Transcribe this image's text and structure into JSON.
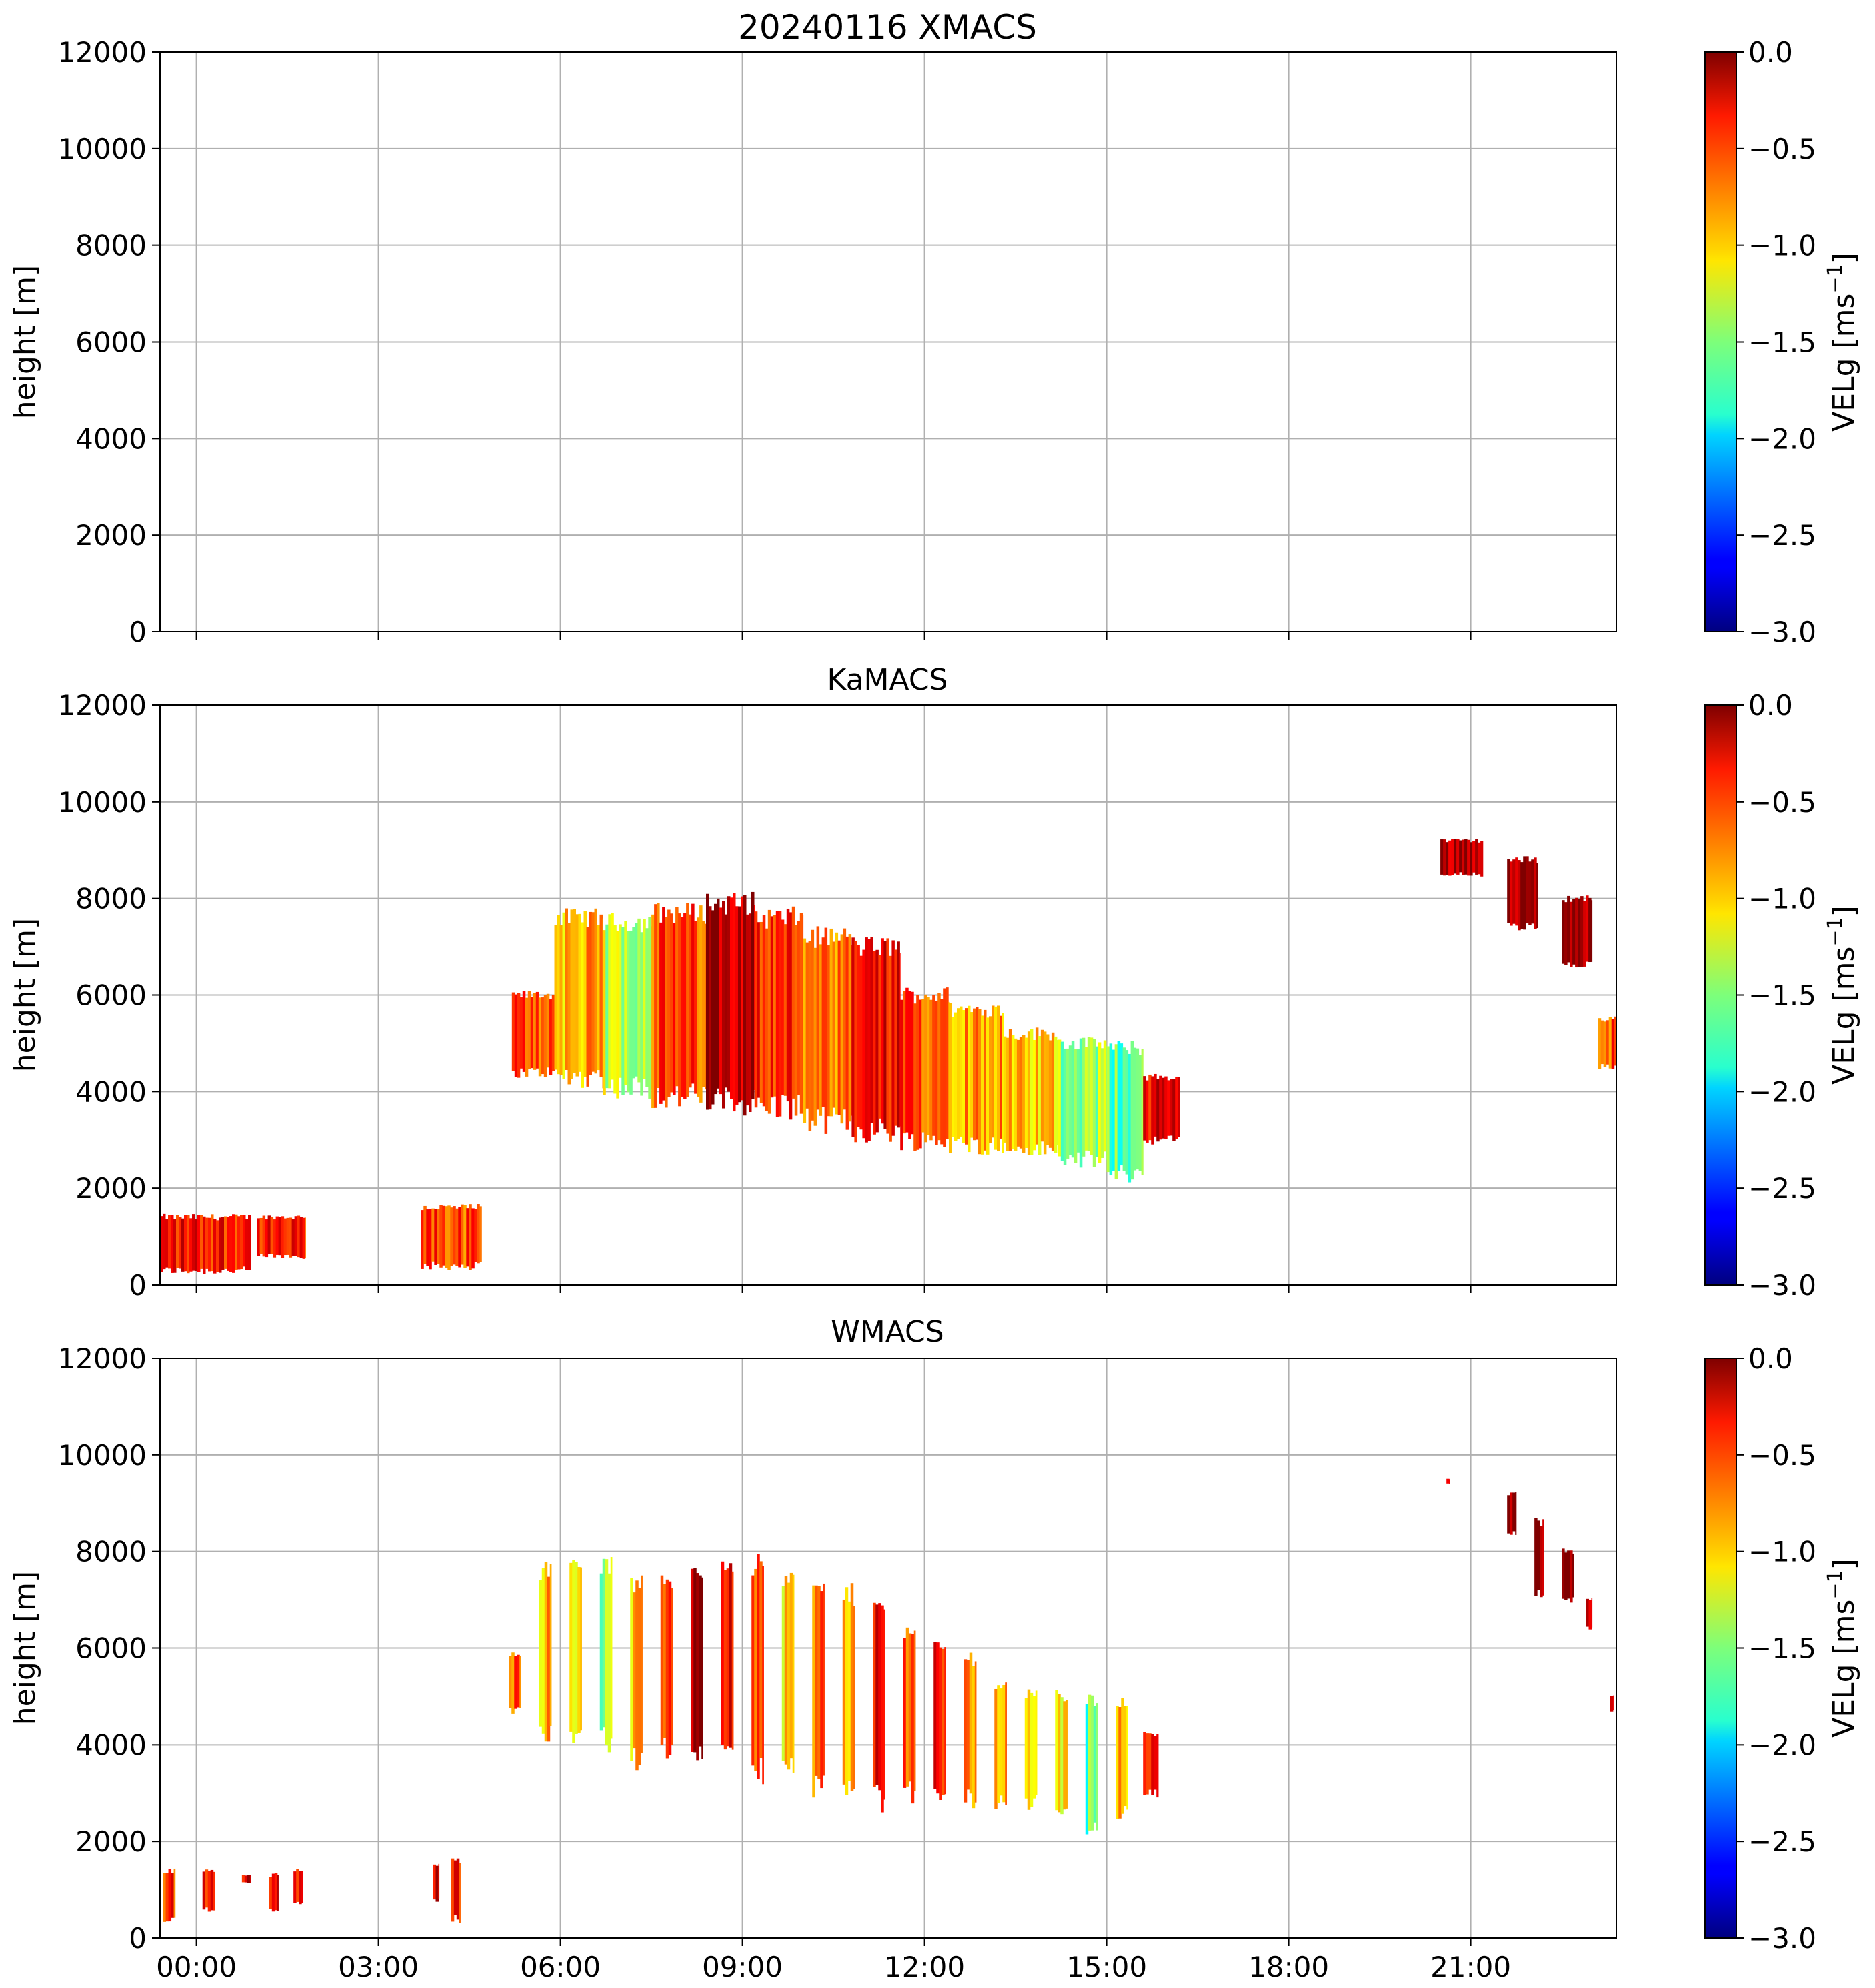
{
  "chart_data": [
    {
      "type": "heatmap",
      "title": "20240116 XMACS",
      "xlabel": "",
      "ylabel": "height [m]",
      "xlim": [
        -0.6,
        23.4
      ],
      "ylim": [
        0,
        12000
      ],
      "x_ticks": [
        0,
        3,
        6,
        9,
        12,
        15,
        18,
        21
      ],
      "y_ticks": [
        0,
        2000,
        4000,
        6000,
        8000,
        10000,
        12000
      ],
      "y_tick_labels": [
        "0",
        "2000",
        "4000",
        "6000",
        "8000",
        "10000",
        "12000"
      ],
      "grid": true,
      "colorbar": {
        "label": "VELg [ms",
        "label_sup": "−1",
        "label_end": "]",
        "range": [
          -3.0,
          0.0
        ],
        "tick_values": [
          0.0,
          -0.5,
          -1.0,
          -1.5,
          -2.0,
          -2.5,
          -3.0
        ],
        "tick_labels": [
          "0.0",
          "−0.5",
          "−1.0",
          "−1.5",
          "−2.0",
          "−2.5",
          "−3.0"
        ],
        "colormap": "jet"
      },
      "regions": []
    },
    {
      "type": "heatmap",
      "title": "KaMACS",
      "xlabel": "",
      "ylabel": "height [m]",
      "xlim": [
        -0.6,
        23.4
      ],
      "ylim": [
        0,
        12000
      ],
      "x_ticks": [
        0,
        3,
        6,
        9,
        12,
        15,
        18,
        21
      ],
      "y_ticks": [
        0,
        2000,
        4000,
        6000,
        8000,
        10000,
        12000
      ],
      "y_tick_labels": [
        "0",
        "2000",
        "4000",
        "6000",
        "8000",
        "10000",
        "12000"
      ],
      "grid": true,
      "colorbar": {
        "label": "VELg [ms",
        "label_sup": "−1",
        "label_end": "]",
        "range": [
          -3.0,
          0.0
        ],
        "tick_values": [
          0.0,
          -0.5,
          -1.0,
          -1.5,
          -2.0,
          -2.5,
          -3.0
        ],
        "tick_labels": [
          "0.0",
          "−0.5",
          "−1.0",
          "−1.5",
          "−2.0",
          "−2.5",
          "−3.0"
        ],
        "colormap": "jet"
      },
      "regions": [
        {
          "t0": -0.6,
          "t1": 0.9,
          "h_top": 1400,
          "h_bot": 300,
          "v": -0.4
        },
        {
          "t0": 1.0,
          "t1": 1.8,
          "h_top": 1400,
          "h_bot": 600,
          "v": -0.5
        },
        {
          "t0": 3.7,
          "t1": 4.7,
          "h_top": 1600,
          "h_bot": 400,
          "v": -0.6
        },
        {
          "t0": 5.2,
          "t1": 5.9,
          "h_top": 6000,
          "h_bot": 4400,
          "v": -0.6
        },
        {
          "t0": 5.9,
          "t1": 6.7,
          "h_top": 7600,
          "h_bot": 4300,
          "v": -0.9
        },
        {
          "t0": 6.7,
          "t1": 7.5,
          "h_top": 7500,
          "h_bot": 4100,
          "v": -1.3
        },
        {
          "t0": 7.5,
          "t1": 8.4,
          "h_top": 7700,
          "h_bot": 3900,
          "v": -0.6
        },
        {
          "t0": 8.4,
          "t1": 9.2,
          "h_top": 7900,
          "h_bot": 3800,
          "v": -0.1
        },
        {
          "t0": 9.2,
          "t1": 10.0,
          "h_top": 7600,
          "h_bot": 3700,
          "v": -0.5
        },
        {
          "t0": 10.0,
          "t1": 10.8,
          "h_top": 7200,
          "h_bot": 3400,
          "v": -0.8
        },
        {
          "t0": 10.8,
          "t1": 11.6,
          "h_top": 7000,
          "h_bot": 3200,
          "v": -0.4
        },
        {
          "t0": 11.6,
          "t1": 12.4,
          "h_top": 6000,
          "h_bot": 3000,
          "v": -0.6
        },
        {
          "t0": 12.4,
          "t1": 13.3,
          "h_top": 5700,
          "h_bot": 2900,
          "v": -0.8
        },
        {
          "t0": 13.3,
          "t1": 14.2,
          "h_top": 5200,
          "h_bot": 2800,
          "v": -1.0
        },
        {
          "t0": 14.2,
          "t1": 15.0,
          "h_top": 5000,
          "h_bot": 2600,
          "v": -1.4
        },
        {
          "t0": 15.0,
          "t1": 15.6,
          "h_top": 4900,
          "h_bot": 2300,
          "v": -1.6
        },
        {
          "t0": 15.6,
          "t1": 16.2,
          "h_top": 4300,
          "h_bot": 3000,
          "v": -0.3
        },
        {
          "t0": 20.5,
          "t1": 21.2,
          "h_top": 9200,
          "h_bot": 8500,
          "v": -0.05
        },
        {
          "t0": 21.6,
          "t1": 22.1,
          "h_top": 8800,
          "h_bot": 7400,
          "v": -0.05
        },
        {
          "t0": 22.5,
          "t1": 23.0,
          "h_top": 8000,
          "h_bot": 6600,
          "v": -0.05
        },
        {
          "t0": 23.1,
          "t1": 23.4,
          "h_top": 5500,
          "h_bot": 4500,
          "v": -0.6
        }
      ]
    },
    {
      "type": "heatmap",
      "title": "WMACS",
      "xlabel": "",
      "ylabel": "height [m]",
      "xlim": [
        -0.6,
        23.4
      ],
      "ylim": [
        0,
        12000
      ],
      "x_ticks": [
        0,
        3,
        6,
        9,
        12,
        15,
        18,
        21
      ],
      "x_tick_labels": [
        "00:00",
        "03:00",
        "06:00",
        "09:00",
        "12:00",
        "15:00",
        "18:00",
        "21:00"
      ],
      "y_ticks": [
        0,
        2000,
        4000,
        6000,
        8000,
        10000,
        12000
      ],
      "y_tick_labels": [
        "0",
        "2000",
        "4000",
        "6000",
        "8000",
        "10000",
        "12000"
      ],
      "grid": true,
      "colorbar": {
        "label": "VELg [ms",
        "label_sup": "−1",
        "label_end": "]",
        "range": [
          -3.0,
          0.0
        ],
        "tick_values": [
          0.0,
          -0.5,
          -1.0,
          -1.5,
          -2.0,
          -2.5,
          -3.0
        ],
        "tick_labels": [
          "0.0",
          "−0.5",
          "−1.0",
          "−1.5",
          "−2.0",
          "−2.5",
          "−3.0"
        ],
        "colormap": "jet"
      },
      "regions": [
        {
          "t0": -0.55,
          "t1": -0.35,
          "h_top": 1400,
          "h_bot": 400,
          "v": -0.5
        },
        {
          "t0": 0.1,
          "t1": 0.3,
          "h_top": 1400,
          "h_bot": 600,
          "v": -0.5
        },
        {
          "t0": 0.75,
          "t1": 0.9,
          "h_top": 1300,
          "h_bot": 1150,
          "v": -0.3
        },
        {
          "t0": 1.2,
          "t1": 1.35,
          "h_top": 1300,
          "h_bot": 600,
          "v": -0.4
        },
        {
          "t0": 1.6,
          "t1": 1.75,
          "h_top": 1400,
          "h_bot": 700,
          "v": -0.4
        },
        {
          "t0": 3.9,
          "t1": 4.0,
          "h_top": 1500,
          "h_bot": 800,
          "v": -0.3
        },
        {
          "t0": 4.2,
          "t1": 4.35,
          "h_top": 1600,
          "h_bot": 400,
          "v": -0.4
        },
        {
          "t0": 5.15,
          "t1": 5.35,
          "h_top": 5900,
          "h_bot": 4700,
          "v": -0.6
        },
        {
          "t0": 5.65,
          "t1": 5.85,
          "h_top": 7600,
          "h_bot": 4300,
          "v": -0.9
        },
        {
          "t0": 6.15,
          "t1": 6.35,
          "h_top": 7800,
          "h_bot": 4300,
          "v": -1.0
        },
        {
          "t0": 6.65,
          "t1": 6.85,
          "h_top": 7700,
          "h_bot": 4100,
          "v": -1.4
        },
        {
          "t0": 7.15,
          "t1": 7.35,
          "h_top": 7300,
          "h_bot": 3700,
          "v": -1.0
        },
        {
          "t0": 7.65,
          "t1": 7.85,
          "h_top": 7400,
          "h_bot": 3900,
          "v": -0.5
        },
        {
          "t0": 8.15,
          "t1": 8.35,
          "h_top": 7600,
          "h_bot": 3900,
          "v": -0.05
        },
        {
          "t0": 8.65,
          "t1": 8.85,
          "h_top": 7800,
          "h_bot": 3700,
          "v": -0.3
        },
        {
          "t0": 9.15,
          "t1": 9.35,
          "h_top": 7700,
          "h_bot": 3500,
          "v": -0.6
        },
        {
          "t0": 9.65,
          "t1": 9.85,
          "h_top": 7400,
          "h_bot": 3500,
          "v": -1.0
        },
        {
          "t0": 10.15,
          "t1": 10.35,
          "h_top": 7200,
          "h_bot": 3200,
          "v": -0.7
        },
        {
          "t0": 10.65,
          "t1": 10.85,
          "h_top": 7100,
          "h_bot": 3000,
          "v": -0.9
        },
        {
          "t0": 11.15,
          "t1": 11.35,
          "h_top": 7000,
          "h_bot": 2900,
          "v": -0.3
        },
        {
          "t0": 11.65,
          "t1": 11.85,
          "h_top": 6300,
          "h_bot": 3000,
          "v": -0.6
        },
        {
          "t0": 12.15,
          "t1": 12.35,
          "h_top": 6000,
          "h_bot": 2900,
          "v": -0.5
        },
        {
          "t0": 12.65,
          "t1": 12.85,
          "h_top": 5800,
          "h_bot": 2900,
          "v": -0.8
        },
        {
          "t0": 13.15,
          "t1": 13.35,
          "h_top": 5200,
          "h_bot": 2800,
          "v": -0.9
        },
        {
          "t0": 13.65,
          "t1": 13.85,
          "h_top": 5100,
          "h_bot": 2800,
          "v": -1.0
        },
        {
          "t0": 14.15,
          "t1": 14.35,
          "h_top": 5000,
          "h_bot": 2700,
          "v": -1.1
        },
        {
          "t0": 14.65,
          "t1": 14.85,
          "h_top": 4900,
          "h_bot": 2300,
          "v": -1.6
        },
        {
          "t0": 15.15,
          "t1": 15.35,
          "h_top": 4900,
          "h_bot": 2600,
          "v": -0.9
        },
        {
          "t0": 15.6,
          "t1": 15.85,
          "h_top": 4200,
          "h_bot": 3000,
          "v": -0.3
        },
        {
          "t0": 20.6,
          "t1": 20.65,
          "h_top": 9500,
          "h_bot": 9400,
          "v": -0.1
        },
        {
          "t0": 21.6,
          "t1": 21.75,
          "h_top": 9200,
          "h_bot": 8400,
          "v": -0.05
        },
        {
          "t0": 22.05,
          "t1": 22.2,
          "h_top": 8600,
          "h_bot": 7100,
          "v": -0.05
        },
        {
          "t0": 22.5,
          "t1": 22.7,
          "h_top": 8000,
          "h_bot": 7000,
          "v": -0.05
        },
        {
          "t0": 22.9,
          "t1": 23.0,
          "h_top": 7000,
          "h_bot": 6400,
          "v": -0.05
        },
        {
          "t0": 23.3,
          "t1": 23.35,
          "h_top": 5000,
          "h_bot": 4700,
          "v": -0.3
        }
      ]
    }
  ]
}
